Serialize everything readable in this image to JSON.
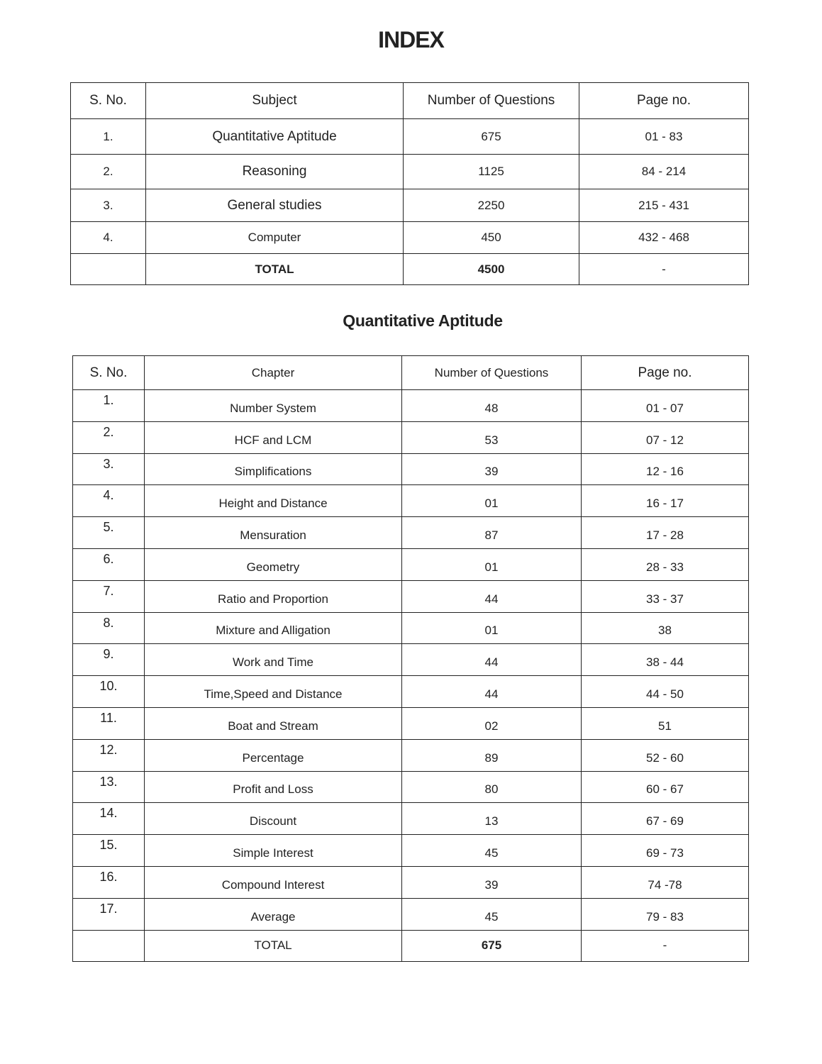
{
  "title": "INDEX",
  "index_table": {
    "headers": [
      "S. No.",
      "Subject",
      "Number of Questions",
      "Page no."
    ],
    "rows": [
      {
        "sno": "1.",
        "subject": "Quantitative Aptitude",
        "questions": "675",
        "pages": "01 - 83"
      },
      {
        "sno": "2.",
        "subject": "Reasoning",
        "questions": "1125",
        "pages": "84 - 214"
      },
      {
        "sno": "3.",
        "subject": "General studies",
        "questions": "2250",
        "pages": "215 - 431"
      },
      {
        "sno": "4.",
        "subject": "Computer",
        "questions": "450",
        "pages": "432 - 468"
      }
    ],
    "total": {
      "label": "TOTAL",
      "questions": "4500",
      "pages": "-"
    }
  },
  "section_title": "Quantitative Aptitude",
  "chapter_table": {
    "headers": [
      "S. No.",
      "Chapter",
      "Number of Questions",
      "Page no."
    ],
    "rows": [
      {
        "sno": "1.",
        "chapter": "Number System",
        "questions": "48",
        "pages": "01 - 07"
      },
      {
        "sno": "2.",
        "chapter": "HCF and LCM",
        "questions": "53",
        "pages": "07 - 12"
      },
      {
        "sno": "3.",
        "chapter": "Simplifications",
        "questions": "39",
        "pages": "12 - 16"
      },
      {
        "sno": "4.",
        "chapter": "Height and Distance",
        "questions": "01",
        "pages": "16 - 17"
      },
      {
        "sno": "5.",
        "chapter": "Mensuration",
        "questions": "87",
        "pages": "17 - 28"
      },
      {
        "sno": "6.",
        "chapter": "Geometry",
        "questions": "01",
        "pages": "28 - 33"
      },
      {
        "sno": "7.",
        "chapter": "Ratio and Proportion",
        "questions": "44",
        "pages": "33 - 37"
      },
      {
        "sno": "8.",
        "chapter": "Mixture and Alligation",
        "questions": "01",
        "pages": "38"
      },
      {
        "sno": "9.",
        "chapter": "Work and Time",
        "questions": "44",
        "pages": "38 - 44"
      },
      {
        "sno": "10.",
        "chapter": "Time,Speed and Distance",
        "questions": "44",
        "pages": "44 - 50"
      },
      {
        "sno": "11.",
        "chapter": "Boat and Stream",
        "questions": "02",
        "pages": "51"
      },
      {
        "sno": "12.",
        "chapter": "Percentage",
        "questions": "89",
        "pages": "52 - 60"
      },
      {
        "sno": "13.",
        "chapter": "Profit and Loss",
        "questions": "80",
        "pages": "60 - 67"
      },
      {
        "sno": "14.",
        "chapter": "Discount",
        "questions": "13",
        "pages": "67 - 69"
      },
      {
        "sno": "15.",
        "chapter": "Simple Interest",
        "questions": "45",
        "pages": "69 - 73"
      },
      {
        "sno": "16.",
        "chapter": "Compound Interest",
        "questions": "39",
        "pages": "74 -78"
      },
      {
        "sno": "17.",
        "chapter": "Average",
        "questions": "45",
        "pages": "79 - 83"
      }
    ],
    "total": {
      "label": "TOTAL",
      "questions": "675",
      "pages": "-"
    }
  }
}
